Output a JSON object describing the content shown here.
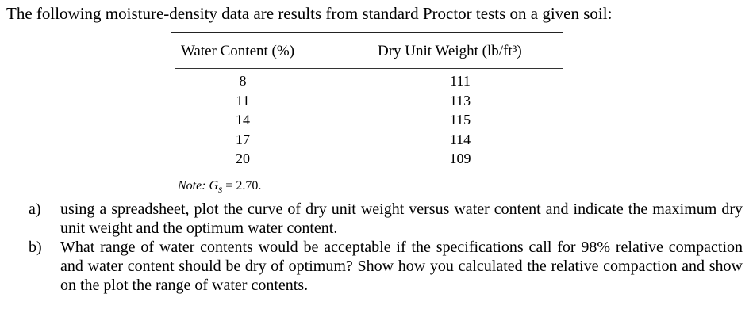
{
  "intro": "The following moisture-density data are results from standard Proctor tests on a given soil:",
  "table": {
    "headers": {
      "water_content": "Water Content (%)",
      "dry_unit_weight": "Dry Unit Weight (lb/ft³)"
    },
    "rows": [
      {
        "water_content": "8",
        "dry_unit_weight": "111"
      },
      {
        "water_content": "11",
        "dry_unit_weight": "113"
      },
      {
        "water_content": "14",
        "dry_unit_weight": "115"
      },
      {
        "water_content": "17",
        "dry_unit_weight": "114"
      },
      {
        "water_content": "20",
        "dry_unit_weight": "109"
      }
    ],
    "note_label": "Note: G",
    "note_sub": "s",
    "note_value": " = 2.70."
  },
  "questions": [
    {
      "marker": "a)",
      "text": "using a spreadsheet, plot the curve of dry unit weight versus water content and indicate the maximum dry unit weight and the optimum water content."
    },
    {
      "marker": "b)",
      "text": "What range of water contents would be acceptable if the specifications call for 98% relative compaction and water content should be dry of optimum? Show how you calculated the relative compaction and show on the plot the range of water contents."
    }
  ]
}
